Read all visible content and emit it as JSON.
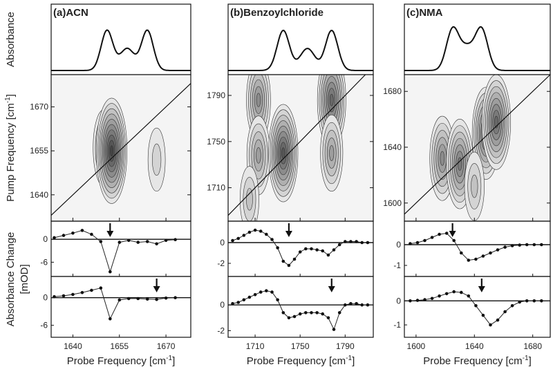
{
  "chart_data": [
    {
      "panel": "(a)",
      "title": "ACN",
      "type": "contour",
      "absorbance_peaks": [
        1651,
        1664
      ],
      "probe_axis": {
        "min": 1633,
        "max": 1678,
        "ticks": [
          1640,
          1655,
          1670
        ],
        "tick_labels": [
          "1640",
          "1655",
          "1670"
        ]
      },
      "pump_axis": {
        "min": 1631,
        "max": 1681,
        "ticks": [
          1640,
          1655,
          1670
        ],
        "tick_labels": [
          "1640",
          "1655",
          "1670"
        ]
      },
      "cross_peaks": [
        {
          "probe": 1650,
          "pump": 1656,
          "intensity": 0.45
        },
        {
          "probe": 1652.5,
          "pump": 1655,
          "intensity": 1.0
        },
        {
          "probe": 1667,
          "pump": 1652,
          "intensity": 0.2
        }
      ],
      "slices": [
        {
          "ylim": [
            -9,
            4
          ],
          "ticks": [
            0,
            -6
          ],
          "tick_labels": [
            "0",
            "-6"
          ],
          "arrow_x": 1652,
          "x": [
            1634,
            1637,
            1640,
            1643,
            1646,
            1649,
            1652,
            1655,
            1658,
            1661,
            1664,
            1667,
            1670,
            1673
          ],
          "y": [
            0.4,
            1.0,
            1.6,
            2.3,
            1.3,
            -0.6,
            -8.5,
            -0.8,
            -0.3,
            -0.8,
            -0.6,
            -1.2,
            -0.3,
            -0.1
          ]
        },
        {
          "ylim": [
            -8,
            4
          ],
          "ticks": [
            0,
            -6
          ],
          "tick_labels": [
            "0",
            "-6"
          ],
          "arrow_x": 1667,
          "x": [
            1634,
            1637,
            1640,
            1643,
            1646,
            1649,
            1652,
            1655,
            1658,
            1661,
            1664,
            1667,
            1670,
            1673
          ],
          "y": [
            0.2,
            0.4,
            0.7,
            1.1,
            1.6,
            2.1,
            -4.6,
            -0.5,
            -0.2,
            -0.2,
            -0.3,
            -0.4,
            -0.1,
            0.0
          ]
        }
      ],
      "xlabel": "Probe Frequency [cm",
      "xlabel_sup": "-1",
      "xlabel_end": "]"
    },
    {
      "panel": "(b)",
      "title": "Benzoylchloride",
      "type": "contour",
      "absorbance_peaks": [
        1735,
        1778
      ],
      "probe_axis": {
        "min": 1686,
        "max": 1815,
        "ticks": [
          1710,
          1750,
          1790
        ],
        "tick_labels": [
          "1710",
          "1750",
          "1790"
        ]
      },
      "pump_axis": {
        "min": 1681,
        "max": 1808,
        "ticks": [
          1710,
          1750,
          1790
        ],
        "tick_labels": [
          "1710",
          "1750",
          "1790"
        ]
      },
      "cross_peaks": [
        {
          "probe": 1713,
          "pump": 1786,
          "intensity": 0.55
        },
        {
          "probe": 1713,
          "pump": 1738,
          "intensity": 0.5
        },
        {
          "probe": 1735,
          "pump": 1740,
          "intensity": 0.85
        },
        {
          "probe": 1778,
          "pump": 1786,
          "intensity": 0.8
        },
        {
          "probe": 1778,
          "pump": 1740,
          "intensity": 0.45
        },
        {
          "probe": 1705,
          "pump": 1700,
          "intensity": 0.25
        }
      ],
      "slices": [
        {
          "ylim": [
            -3,
            1.8
          ],
          "ticks": [
            0,
            -2
          ],
          "tick_labels": [
            "0",
            "-2"
          ],
          "arrow_x": 1740,
          "x": [
            1690,
            1695,
            1700,
            1705,
            1710,
            1715,
            1720,
            1725,
            1730,
            1735,
            1740,
            1745,
            1750,
            1755,
            1760,
            1765,
            1770,
            1775,
            1780,
            1785,
            1790,
            1795,
            1800,
            1805,
            1810
          ],
          "y": [
            0.2,
            0.4,
            0.7,
            1.0,
            1.2,
            1.1,
            0.8,
            0.3,
            -0.5,
            -1.8,
            -2.2,
            -1.6,
            -0.9,
            -0.6,
            -0.6,
            -0.7,
            -0.8,
            -1.2,
            -0.7,
            -0.2,
            0.1,
            0.1,
            0.1,
            0.0,
            0.0
          ]
        },
        {
          "ylim": [
            -2.3,
            2.0
          ],
          "ticks": [
            0,
            -2
          ],
          "tick_labels": [
            "0",
            "-2"
          ],
          "arrow_x": 1778,
          "x": [
            1690,
            1695,
            1700,
            1705,
            1710,
            1715,
            1720,
            1725,
            1730,
            1735,
            1740,
            1745,
            1750,
            1755,
            1760,
            1765,
            1770,
            1775,
            1780,
            1785,
            1790,
            1795,
            1800,
            1805,
            1810
          ],
          "y": [
            0.1,
            0.2,
            0.4,
            0.6,
            0.8,
            1.0,
            1.1,
            1.0,
            0.4,
            -0.6,
            -1.0,
            -0.9,
            -0.7,
            -0.6,
            -0.6,
            -0.6,
            -0.7,
            -1.0,
            -1.9,
            -0.6,
            0.0,
            0.1,
            0.1,
            0.0,
            0.0
          ]
        }
      ],
      "xlabel": "Probe Frequency [cm",
      "xlabel_sup": "-1",
      "xlabel_end": "]"
    },
    {
      "panel": "(c)",
      "title": "NMA",
      "type": "contour",
      "absorbance_peaks": [
        1625,
        1645
      ],
      "probe_axis": {
        "min": 1592,
        "max": 1692,
        "ticks": [
          1600,
          1640,
          1680
        ],
        "tick_labels": [
          "1600",
          "1640",
          "1680"
        ]
      },
      "pump_axis": {
        "min": 1587,
        "max": 1692,
        "ticks": [
          1600,
          1640,
          1680
        ],
        "tick_labels": [
          "1600",
          "1640",
          "1680"
        ]
      },
      "cross_peaks": [
        {
          "probe": 1618,
          "pump": 1632,
          "intensity": 0.6
        },
        {
          "probe": 1630,
          "pump": 1628,
          "intensity": 0.7
        },
        {
          "probe": 1648,
          "pump": 1650,
          "intensity": 0.75
        },
        {
          "probe": 1655,
          "pump": 1658,
          "intensity": 0.8
        },
        {
          "probe": 1640,
          "pump": 1612,
          "intensity": 0.3
        }
      ],
      "slices": [
        {
          "ylim": [
            -1.4,
            1.0
          ],
          "ticks": [
            0,
            -1
          ],
          "tick_labels": [
            "0",
            "-1"
          ],
          "arrow_x": 1625,
          "x": [
            1596,
            1601,
            1606,
            1611,
            1616,
            1621,
            1626,
            1631,
            1636,
            1641,
            1646,
            1651,
            1656,
            1661,
            1666,
            1671,
            1676,
            1681,
            1686
          ],
          "y": [
            0.05,
            0.1,
            0.2,
            0.35,
            0.5,
            0.55,
            0.2,
            -0.4,
            -0.75,
            -0.7,
            -0.55,
            -0.4,
            -0.25,
            -0.12,
            -0.05,
            -0.02,
            0.0,
            0.0,
            0.0
          ]
        },
        {
          "ylim": [
            -1.4,
            0.9
          ],
          "ticks": [
            0,
            -1
          ],
          "tick_labels": [
            "0",
            "-1"
          ],
          "arrow_x": 1645,
          "x": [
            1596,
            1601,
            1606,
            1611,
            1616,
            1621,
            1626,
            1631,
            1636,
            1641,
            1646,
            1651,
            1656,
            1661,
            1666,
            1671,
            1676,
            1681,
            1686
          ],
          "y": [
            0.0,
            0.02,
            0.05,
            0.1,
            0.2,
            0.3,
            0.38,
            0.35,
            0.2,
            -0.2,
            -0.6,
            -1.0,
            -0.8,
            -0.45,
            -0.2,
            -0.05,
            0.0,
            0.0,
            0.0
          ]
        }
      ],
      "xlabel": "Probe Frequency [cm",
      "xlabel_sup": "-1",
      "xlabel_end": "]"
    }
  ],
  "axis_labels": {
    "absorbance": "Absorbance",
    "pump": "Pump Frequency [cm",
    "pump_sup": "-1",
    "pump_end": "]",
    "change": "Absorbance Change",
    "change_unit": "[mOD]"
  }
}
